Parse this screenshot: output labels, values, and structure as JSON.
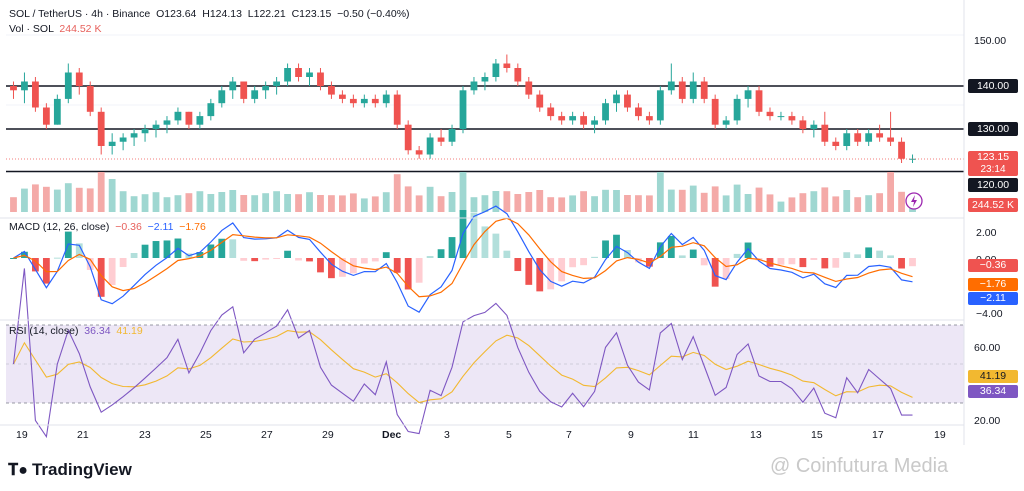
{
  "header": {
    "symbol_line": "SOL / TetherUS · 4h · Binance",
    "open": "O123.64",
    "high": "H124.13",
    "low": "L122.21",
    "close": "C123.15",
    "change": "−0.50 (−0.40%)",
    "vol_label": "Vol · SOL",
    "vol_value": "244.52 K"
  },
  "macd_legend": {
    "label": "MACD (12, 26, close)",
    "hist": "−0.36",
    "macd": "−2.11",
    "signal": "−1.76"
  },
  "rsi_legend": {
    "label": "RSI (14, close)",
    "rsi": "36.34",
    "ma": "41.19"
  },
  "price_axis": {
    "labels": [
      "150.00",
      "140.00",
      "130.00",
      "120.00"
    ],
    "current_price": "123.15",
    "countdown": "23:14",
    "volume_tag": "244.52 K"
  },
  "macd_axis": {
    "labels": [
      "2.00",
      "0.00",
      "−4.00"
    ],
    "tag_hist": "−0.36",
    "tag_signal": "−1.76",
    "tag_macd": "−2.11"
  },
  "rsi_axis": {
    "labels": [
      "60.00",
      "20.00"
    ],
    "tag_ma": "41.19",
    "tag_rsi": "36.34"
  },
  "time_axis": [
    "19",
    "21",
    "23",
    "25",
    "27",
    "29",
    "Dec",
    "3",
    "5",
    "7",
    "9",
    "11",
    "13",
    "15",
    "17",
    "19"
  ],
  "footer": {
    "logo": "TradingView",
    "watermark": "@ Coinfutura Media"
  },
  "colors": {
    "up": "#26a69a",
    "down": "#ef5350",
    "macd_line": "#2962ff",
    "signal_line": "#ff6d00",
    "rsi_line": "#7e57c2",
    "rsi_ma": "#f2b830",
    "rsi_band": "#ede7f6"
  },
  "chart_data": {
    "type": "candlestick",
    "title": "SOL / TetherUS · 4h · Binance",
    "horizontal_levels": [
      140,
      130,
      120
    ],
    "ylim": [
      117,
      153
    ],
    "candles_approx": [
      [
        140,
        141,
        137,
        139
      ],
      [
        139,
        143,
        136,
        141
      ],
      [
        141,
        142,
        134,
        135
      ],
      [
        135,
        136,
        130,
        131
      ],
      [
        131,
        138,
        131,
        137
      ],
      [
        137,
        145,
        136,
        143
      ],
      [
        143,
        144,
        138,
        140
      ],
      [
        140,
        141,
        133,
        134
      ],
      [
        134,
        135,
        124,
        126
      ],
      [
        126,
        129,
        124,
        127
      ],
      [
        127,
        129,
        125,
        128
      ],
      [
        128,
        130,
        126,
        129
      ],
      [
        129,
        131,
        127,
        130
      ],
      [
        130,
        132,
        128,
        131
      ],
      [
        131,
        133,
        129,
        132
      ],
      [
        132,
        135,
        131,
        134
      ],
      [
        134,
        134,
        130,
        131
      ],
      [
        131,
        134,
        130,
        133
      ],
      [
        133,
        137,
        132,
        136
      ],
      [
        136,
        140,
        135,
        139
      ],
      [
        139,
        142,
        137,
        141
      ],
      [
        141,
        141,
        136,
        137
      ],
      [
        137,
        140,
        136,
        139
      ],
      [
        139,
        141,
        137,
        140
      ],
      [
        140,
        142,
        138,
        141
      ],
      [
        141,
        145,
        140,
        144
      ],
      [
        144,
        145,
        141,
        142
      ],
      [
        142,
        144,
        140,
        143
      ],
      [
        143,
        144,
        139,
        140
      ],
      [
        140,
        141,
        137,
        138
      ],
      [
        138,
        139,
        136,
        137
      ],
      [
        137,
        138,
        135,
        136
      ],
      [
        136,
        138,
        135,
        137
      ],
      [
        137,
        138,
        135,
        136
      ],
      [
        136,
        139,
        135,
        138
      ],
      [
        138,
        139,
        130,
        131
      ],
      [
        131,
        132,
        124,
        125
      ],
      [
        125,
        126,
        123,
        124
      ],
      [
        124,
        129,
        123,
        128
      ],
      [
        128,
        130,
        126,
        127
      ],
      [
        127,
        131,
        126,
        130
      ],
      [
        130,
        140,
        129,
        139
      ],
      [
        139,
        142,
        138,
        141
      ],
      [
        141,
        143,
        139,
        142
      ],
      [
        142,
        146,
        141,
        145
      ],
      [
        145,
        147,
        143,
        144
      ],
      [
        144,
        145,
        140,
        141
      ],
      [
        141,
        142,
        137,
        138
      ],
      [
        138,
        139,
        134,
        135
      ],
      [
        135,
        136,
        132,
        133
      ],
      [
        133,
        134,
        131,
        132
      ],
      [
        132,
        134,
        131,
        133
      ],
      [
        133,
        134,
        130,
        131
      ],
      [
        131,
        133,
        129,
        132
      ],
      [
        132,
        137,
        131,
        136
      ],
      [
        136,
        139,
        134,
        138
      ],
      [
        138,
        139,
        134,
        135
      ],
      [
        135,
        136,
        132,
        133
      ],
      [
        133,
        134,
        131,
        132
      ],
      [
        132,
        140,
        131,
        139
      ],
      [
        139,
        145,
        138,
        141
      ],
      [
        141,
        142,
        136,
        137
      ],
      [
        137,
        143,
        136,
        141
      ],
      [
        141,
        142,
        136,
        137
      ],
      [
        137,
        138,
        130,
        131
      ],
      [
        131,
        133,
        130,
        132
      ],
      [
        132,
        138,
        131,
        137
      ],
      [
        137,
        140,
        135,
        139
      ],
      [
        139,
        140,
        133,
        134
      ],
      [
        134,
        135,
        132,
        133
      ],
      [
        133,
        134,
        132,
        133
      ],
      [
        133,
        134,
        131,
        132
      ],
      [
        132,
        133,
        129,
        130
      ],
      [
        130,
        132,
        128,
        131
      ],
      [
        131,
        134,
        126,
        127
      ],
      [
        127,
        128,
        125,
        126
      ],
      [
        126,
        130,
        125,
        129
      ],
      [
        129,
        130,
        126,
        127
      ],
      [
        127,
        130,
        126,
        129
      ],
      [
        129,
        131,
        127,
        128
      ],
      [
        128,
        134,
        126,
        127
      ],
      [
        127,
        128,
        122,
        123
      ],
      [
        123,
        124,
        122,
        123
      ]
    ],
    "volume_tag": "244.52 K",
    "macd": {
      "params": "12, 26, close",
      "ylim": [
        -4.5,
        3.0
      ]
    },
    "rsi": {
      "params": "14, close",
      "bands": [
        70,
        30
      ],
      "ylim": [
        20,
        75
      ]
    }
  }
}
